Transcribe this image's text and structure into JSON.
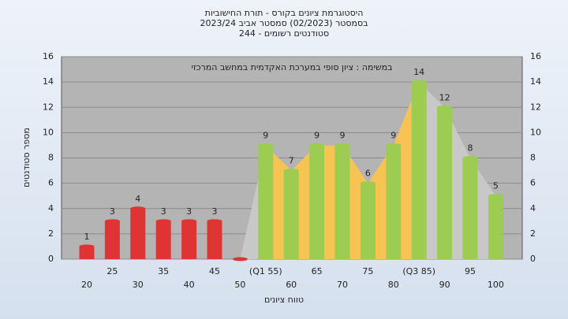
{
  "chart_data": {
    "type": "bar",
    "title": [
      "היסטוגרמת ציונים בקורס - תורת החישוביות",
      "בסמסטר (02/2023) סמסטר אביב 2023/24",
      "סטודנטים רשומים - 244"
    ],
    "annotation": "במשימה : ציון סופי במערכת האקדמית במחשב המרכזי",
    "x_label": "טווח ציונים",
    "y_label": "מספר סטודנטים",
    "categories": [
      "20",
      "25",
      "30",
      "35",
      "40",
      "45",
      "50",
      "(Q1 55)",
      "60",
      "65",
      "70",
      "75",
      "80",
      "(Q3 85)",
      "90",
      "95",
      "100"
    ],
    "values": [
      1,
      3,
      4,
      3,
      3,
      3,
      0,
      9,
      7,
      9,
      9,
      6,
      9,
      14,
      12,
      8,
      5
    ],
    "colors": [
      "#e03434",
      "#e03434",
      "#e03434",
      "#e03434",
      "#e03434",
      "#e03434",
      "#e03434",
      "#9ccc50",
      "#9ccc50",
      "#9ccc50",
      "#9ccc50",
      "#9ccc50",
      "#9ccc50",
      "#9ccc50",
      "#9ccc50",
      "#9ccc50",
      "#9ccc50"
    ],
    "area_color": "#f7c454",
    "shade_color": "#c8c8c8",
    "ylim": [
      0,
      16
    ],
    "yticks": [
      0,
      2,
      4,
      6,
      8,
      10,
      12,
      14,
      16
    ],
    "grid": true
  }
}
